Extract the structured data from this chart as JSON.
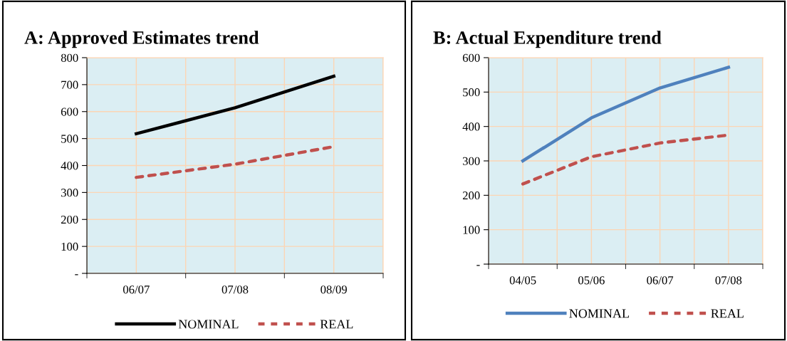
{
  "chart_data": [
    {
      "type": "line",
      "title": "A: Approved Estimates trend",
      "categories": [
        "06/07",
        "07/08",
        "08/09"
      ],
      "series": [
        {
          "name": "NOMINAL",
          "color": "#000000",
          "line_style": "solid",
          "values": [
            518,
            614,
            731
          ]
        },
        {
          "name": "REAL",
          "color": "#c0504d",
          "line_style": "dashed",
          "values": [
            356,
            405,
            470
          ]
        }
      ],
      "ylim": [
        0,
        800
      ],
      "yticks": [
        {
          "value": 0,
          "label": "-"
        },
        100,
        200,
        300,
        400,
        500,
        600,
        700,
        800
      ],
      "grid": true,
      "legend": "bottom",
      "marker": "none"
    },
    {
      "type": "line",
      "title": "B: Actual Expenditure trend",
      "categories": [
        "04/05",
        "05/06",
        "06/07",
        "07/08"
      ],
      "series": [
        {
          "name": "NOMINAL",
          "color": "#4f81bd",
          "line_style": "solid",
          "values": [
            300,
            425,
            512,
            572
          ]
        },
        {
          "name": "REAL",
          "color": "#c0504d",
          "line_style": "dashed",
          "values": [
            233,
            312,
            352,
            375
          ]
        }
      ],
      "ylim": [
        0,
        600
      ],
      "yticks": [
        {
          "value": 0,
          "label": "-"
        },
        100,
        200,
        300,
        400,
        500,
        600
      ],
      "grid": true,
      "legend": "bottom",
      "marker": "none"
    }
  ]
}
